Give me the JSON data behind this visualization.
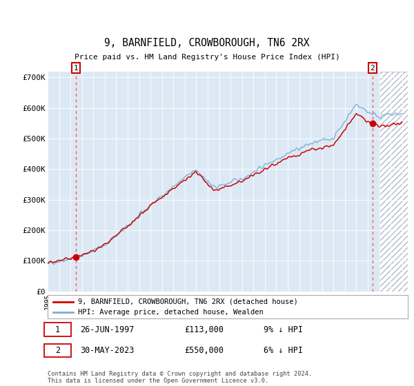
{
  "title": "9, BARNFIELD, CROWBOROUGH, TN6 2RX",
  "subtitle": "Price paid vs. HM Land Registry's House Price Index (HPI)",
  "ylim": [
    0,
    720000
  ],
  "xlim_start": 1995.0,
  "xlim_end": 2026.5,
  "sale1_year": 1997.49,
  "sale1_price": 113000,
  "sale2_year": 2023.41,
  "sale2_price": 550000,
  "legend_label_red": "9, BARNFIELD, CROWBOROUGH, TN6 2RX (detached house)",
  "legend_label_blue": "HPI: Average price, detached house, Wealden",
  "footnote": "Contains HM Land Registry data © Crown copyright and database right 2024.\nThis data is licensed under the Open Government Licence v3.0.",
  "bg_color": "#dce9f5",
  "grid_color": "#ffffff",
  "red_line_color": "#cc0000",
  "blue_line_color": "#7bafd4",
  "dashed_line_color": "#ff5555",
  "hatch_bg": "#e8eef5",
  "hatch_start": 2024.0
}
